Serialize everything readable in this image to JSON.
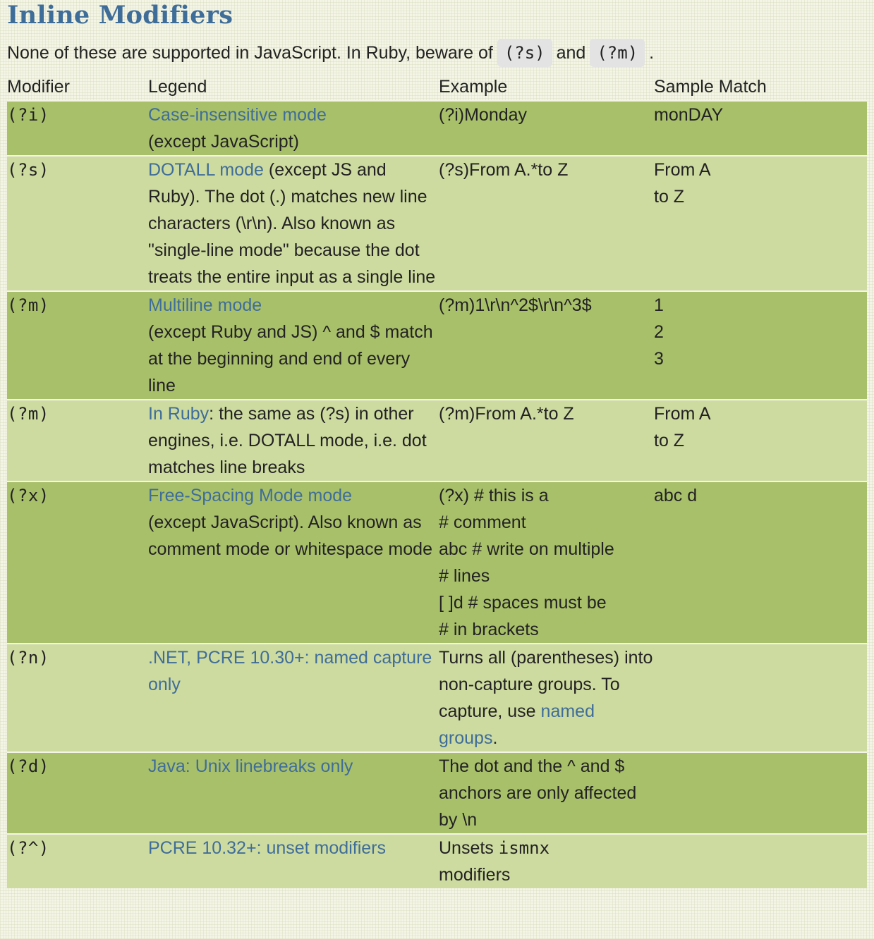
{
  "title": "Inline Modifiers",
  "intro": {
    "text_before": "None of these are supported in JavaScript. In Ruby, beware of",
    "code1": "(?s)",
    "text_mid": "and",
    "code2": "(?m)",
    "text_after": "."
  },
  "table": {
    "headers": [
      "Modifier",
      "Legend",
      "Example",
      "Sample Match"
    ],
    "rows": [
      {
        "modifier": "(?i)",
        "legend_link": "Case-insensitive mode",
        "legend_text": "(except JavaScript)",
        "example": "(?i)Monday",
        "sample": "monDAY"
      },
      {
        "modifier": "(?s)",
        "legend_link": "DOTALL mode",
        "legend_text": " (except JS and Ruby). The dot (.) matches new line characters (\\r\\n). Also known as \"single-line mode\" because the dot treats the entire input as a single line",
        "example": "(?s)From A.*to Z",
        "sample": "From A\nto Z"
      },
      {
        "modifier": "(?m)",
        "legend_link": "Multiline mode",
        "legend_text": "(except Ruby and JS) ^ and $ match at the beginning and end of every line",
        "example": "(?m)1\\r\\n^2$\\r\\n^3$",
        "sample": "1\n2\n3"
      },
      {
        "modifier": "(?m)",
        "legend_link": "In Ruby",
        "legend_text": ": the same as (?s) in other engines, i.e. DOTALL mode, i.e. dot matches line breaks",
        "example": "(?m)From A.*to Z",
        "sample": "From A\nto Z"
      },
      {
        "modifier": "(?x)",
        "legend_link": "Free-Spacing Mode mode",
        "legend_text": "(except JavaScript). Also known as comment mode or whitespace mode",
        "example": "(?x) # this is a\n# comment\nabc # write on multiple\n# lines\n[ ]d # spaces must be\n# in brackets",
        "sample": "abc d"
      },
      {
        "modifier": "(?n)",
        "legend_link": ".NET, PCRE 10.30+: named capture only",
        "legend_text": "",
        "example": "Turns all (parentheses) into non-capture groups. To capture, use",
        "example_link": "named groups",
        "example_after": ".",
        "sample": ""
      },
      {
        "modifier": "(?d)",
        "legend_link": "Java: Unix linebreaks only",
        "legend_text": "",
        "example": "The dot and the ^ and $ anchors are only affected by \\n",
        "sample": ""
      },
      {
        "modifier": "(?^)",
        "legend_link": "PCRE 10.32+: unset modifiers",
        "legend_text": "",
        "example": "Unsets",
        "example_code": "ismnx",
        "example_after": "modifiers",
        "sample": ""
      }
    ]
  }
}
